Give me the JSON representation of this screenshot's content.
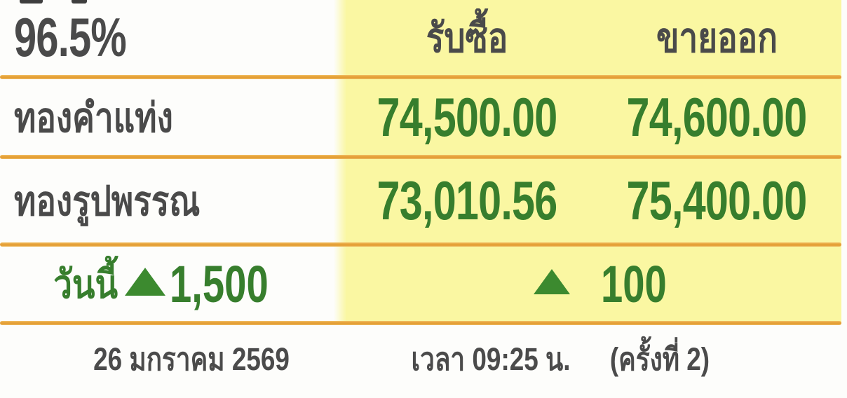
{
  "board": {
    "purity": "96.5%",
    "columns": {
      "buy": "รับซื้อ",
      "sell": "ขายออก"
    },
    "rows": [
      {
        "label": "ทองคำแท่ง",
        "buy": "74,500.00",
        "sell": "74,600.00"
      },
      {
        "label": "ทองรูปพรรณ",
        "buy": "73,010.56",
        "sell": "75,400.00"
      }
    ],
    "today": {
      "label": "วันนี้",
      "direction": "up",
      "bar_change": "1,500",
      "ornament_change": "100"
    }
  },
  "footer": {
    "date": "26 มกราคม 2569",
    "time": "เวลา 09:25 น.",
    "round": "(ครั้งที่ 2)"
  },
  "colors": {
    "panel_yellow": "#faf7a2",
    "divider_orange": "#e7a33b",
    "price_green": "#377e2d",
    "triangle_green": "#3c8a2f",
    "text_dark": "#4a4a4a"
  }
}
